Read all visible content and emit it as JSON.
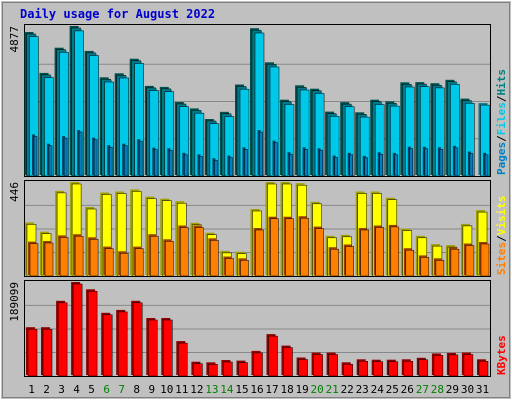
{
  "chart_data": {
    "type": "bar",
    "title": "Daily usage for August 2022",
    "days": [
      "1",
      "2",
      "3",
      "4",
      "5",
      "6",
      "7",
      "8",
      "9",
      "10",
      "11",
      "12",
      "13",
      "14",
      "15",
      "16",
      "17",
      "18",
      "19",
      "20",
      "21",
      "22",
      "23",
      "24",
      "25",
      "26",
      "27",
      "28",
      "29",
      "30",
      "31"
    ],
    "weekend_days": [
      6,
      7,
      13,
      14,
      20,
      21,
      27,
      28
    ],
    "colors": {
      "background": "#c0c0c0",
      "title": "#0000cc",
      "grid": "#888888",
      "hits": "#008080",
      "hits_side": "#005050",
      "files": "#00c8e8",
      "files_side": "#007890",
      "pages": "#0080c0",
      "visits": "#ffff00",
      "visits_side": "#a0a000",
      "sites": "#ff8000",
      "sites_side": "#a04000",
      "kbytes": "#ff0000",
      "kbytes_side": "#900000",
      "weekday_label": "#000000",
      "weekend_label": "#008000"
    },
    "panels": [
      {
        "name": "hits-files-pages",
        "max_label": "4877",
        "ymax": 4877,
        "legend": [
          {
            "label": "Pages",
            "color_key": "pages"
          },
          {
            "label": "Files",
            "color_key": "files"
          },
          {
            "label": "Hits",
            "color_key": "hits"
          }
        ],
        "series": [
          {
            "name": "Hits",
            "color_key": "hits",
            "values": [
              4679,
              3332,
              4161,
              4877,
              4056,
              3187,
              3319,
              3798,
              2902,
              2870,
              2373,
              2163,
              1814,
              2050,
              2949,
              4803,
              3681,
              2447,
              2924,
              2810,
              2056,
              2370,
              2032,
              2448,
              2395,
              3023,
              3030,
              2993,
              3105,
              2483,
              null
            ]
          },
          {
            "name": "Files",
            "color_key": "files",
            "values": [
              4589,
              3243,
              4073,
              4780,
              3967,
              3097,
              3230,
              3708,
              2815,
              2778,
              2282,
              2070,
              1725,
              1960,
              2861,
              4712,
              3593,
              2356,
              2835,
              2719,
              1966,
              2282,
              1942,
              2356,
              2304,
              2934,
              2943,
              2904,
              3018,
              2395,
              2337
            ]
          },
          {
            "name": "Pages",
            "color_key": "pages",
            "values": [
              1300,
              1000,
              1250,
              1450,
              1200,
              950,
              1000,
              1150,
              870,
              850,
              700,
              650,
              520,
              610,
              880,
              1450,
              1100,
              720,
              880,
              850,
              610,
              700,
              600,
              720,
              700,
              900,
              900,
              880,
              930,
              740,
              700
            ]
          }
        ]
      },
      {
        "name": "visits-sites",
        "max_label": "446",
        "ymax": 446,
        "legend": [
          {
            "label": "Sites",
            "color_key": "sites"
          },
          {
            "label": "Visits",
            "color_key": "visits"
          }
        ],
        "series": [
          {
            "name": "Visits",
            "color_key": "visits",
            "values": [
              250,
              205,
              403,
              446,
              325,
              395,
              400,
              410,
              375,
              365,
              353,
              248,
              200,
              112,
              108,
              315,
              446,
              446,
              440,
              350,
              185,
              190,
              400,
              400,
              370,
              220,
              185,
              145,
              140,
              243,
              310
            ]
          },
          {
            "name": "Sites",
            "color_key": "sites",
            "values": [
              157,
              160,
              187,
              193,
              178,
              133,
              110,
              133,
              193,
              168,
              235,
              235,
              173,
              85,
              76,
              223,
              278,
              278,
              280,
              230,
              130,
              143,
              223,
              235,
              238,
              125,
              90,
              76,
              130,
              148,
              155
            ]
          }
        ]
      },
      {
        "name": "kbytes",
        "max_label": "189099",
        "ymax": 189099,
        "legend": [
          {
            "label": "KBytes",
            "color_key": "kbytes"
          }
        ],
        "series": [
          {
            "name": "KBytes",
            "color_key": "kbytes",
            "values": [
              96280,
              96280,
              150440,
              189099,
              174020,
              125880,
              131800,
              150440,
              115060,
              115060,
              67600,
              25200,
              24000,
              28800,
              27600,
              47450,
              82100,
              58300,
              34000,
              44100,
              44100,
              24000,
              30200,
              29400,
              29400,
              30200,
              33300,
              42300,
              43300,
              44100,
              30200
            ]
          }
        ]
      }
    ]
  }
}
